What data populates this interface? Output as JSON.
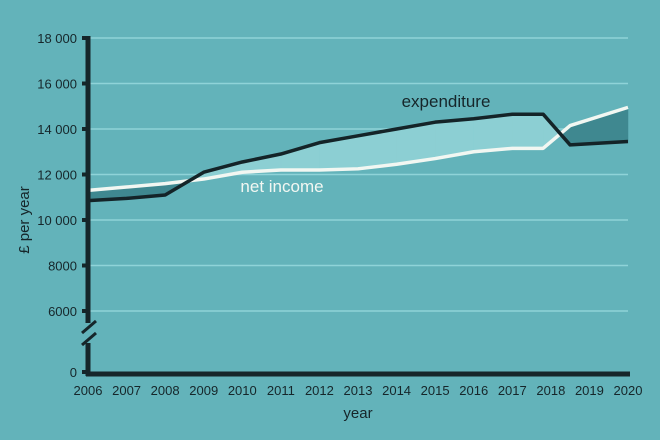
{
  "chart_data": {
    "type": "line",
    "title": "",
    "xlabel": "year",
    "ylabel": "£ per year",
    "xlim": [
      2006,
      2020
    ],
    "ylim_broken": {
      "lower": [
        0,
        0
      ],
      "upper": [
        6000,
        18000
      ]
    },
    "y_ticks": [
      {
        "value": 0,
        "label": "0"
      },
      {
        "value": 6000,
        "label": "6000"
      },
      {
        "value": 8000,
        "label": "8000"
      },
      {
        "value": 10000,
        "label": "10 000"
      },
      {
        "value": 12000,
        "label": "12 000"
      },
      {
        "value": 14000,
        "label": "14 000"
      },
      {
        "value": 16000,
        "label": "16 000"
      },
      {
        "value": 18000,
        "label": "18 000"
      }
    ],
    "x_ticks": [
      "2006",
      "2007",
      "2008",
      "2009",
      "2010",
      "2011",
      "2012",
      "2013",
      "2014",
      "2015",
      "2016",
      "2017",
      "2018",
      "2019",
      "2020"
    ],
    "grid": true,
    "x": [
      2006,
      2007,
      2008,
      2009,
      2010,
      2011,
      2012,
      2013,
      2014,
      2015,
      2016,
      2017,
      2017.8,
      2018.5,
      2020
    ],
    "series": [
      {
        "name": "expenditure",
        "color": "#142428",
        "values": [
          10850,
          10950,
          11100,
          12100,
          12550,
          12900,
          13400,
          13700,
          14000,
          14300,
          14450,
          14650,
          14650,
          13300,
          13450
        ]
      },
      {
        "name": "net income",
        "color": "#f2f7f2",
        "values": [
          11300,
          11450,
          11600,
          11800,
          12100,
          12200,
          12200,
          12250,
          12450,
          12700,
          13000,
          13150,
          13150,
          14150,
          14950
        ]
      }
    ],
    "annotations": [
      "expenditure",
      "net income"
    ],
    "colors": {
      "background": "#63b3ba",
      "surplus_fill": "#8ccfd3",
      "deficit_fill": "#3f8890",
      "grid": "#8fd3d8",
      "axis": "#16262a"
    }
  }
}
